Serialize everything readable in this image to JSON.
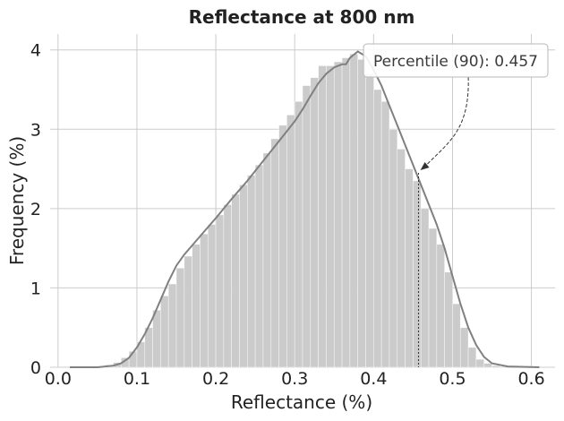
{
  "chart_data": {
    "type": "bar",
    "title": "Reflectance at 800 nm",
    "xlabel": "Reflectance (%)",
    "ylabel": "Frequency (%)",
    "xlim": [
      -0.01,
      0.63
    ],
    "ylim": [
      0,
      4.2
    ],
    "xticks": [
      0.0,
      0.1,
      0.2,
      0.3,
      0.4,
      0.5,
      0.6
    ],
    "xtick_labels": [
      "0.0",
      "0.1",
      "0.2",
      "0.3",
      "0.4",
      "0.5",
      "0.6"
    ],
    "yticks": [
      0,
      1,
      2,
      3,
      4
    ],
    "ytick_labels": [
      "0",
      "1",
      "2",
      "3",
      "4"
    ],
    "grid": true,
    "bins": {
      "start": 0.0,
      "width": 0.01,
      "values": [
        0.0,
        0.0,
        0.0,
        0.0,
        0.0,
        0.01,
        0.03,
        0.06,
        0.12,
        0.2,
        0.32,
        0.5,
        0.72,
        0.9,
        1.05,
        1.25,
        1.4,
        1.55,
        1.68,
        1.8,
        1.92,
        2.05,
        2.18,
        2.3,
        2.42,
        2.55,
        2.7,
        2.88,
        3.05,
        3.18,
        3.35,
        3.55,
        3.65,
        3.8,
        3.8,
        3.85,
        3.9,
        3.95,
        3.88,
        3.7,
        3.5,
        3.35,
        3.0,
        2.75,
        2.5,
        2.35,
        2.0,
        1.75,
        1.55,
        1.2,
        0.8,
        0.5,
        0.25,
        0.1,
        0.05,
        0.02,
        0.01,
        0.0,
        0.0,
        0.0,
        0.0
      ]
    },
    "kde": {
      "color": "#808080",
      "x": [
        0.015,
        0.03,
        0.05,
        0.07,
        0.08,
        0.09,
        0.1,
        0.11,
        0.12,
        0.13,
        0.14,
        0.15,
        0.16,
        0.18,
        0.2,
        0.22,
        0.24,
        0.26,
        0.28,
        0.3,
        0.31,
        0.32,
        0.33,
        0.34,
        0.35,
        0.36,
        0.365,
        0.37,
        0.38,
        0.39,
        0.4,
        0.41,
        0.42,
        0.43,
        0.44,
        0.45,
        0.46,
        0.47,
        0.48,
        0.49,
        0.5,
        0.51,
        0.52,
        0.53,
        0.54,
        0.55,
        0.57,
        0.61
      ],
      "y": [
        0.0,
        0.0,
        0.0,
        0.02,
        0.05,
        0.12,
        0.25,
        0.42,
        0.62,
        0.85,
        1.08,
        1.28,
        1.42,
        1.65,
        1.88,
        2.12,
        2.35,
        2.6,
        2.85,
        3.1,
        3.25,
        3.42,
        3.58,
        3.7,
        3.78,
        3.82,
        3.82,
        3.9,
        3.98,
        3.92,
        3.75,
        3.55,
        3.3,
        3.05,
        2.8,
        2.55,
        2.3,
        2.05,
        1.8,
        1.5,
        1.15,
        0.8,
        0.5,
        0.28,
        0.13,
        0.05,
        0.01,
        0.0
      ]
    },
    "marker": {
      "x": 0.457,
      "y": 2.45,
      "label": "Percentile (90): 0.457",
      "label_anchor_x": 0.52,
      "label_anchor_y": 3.88
    },
    "colors": {
      "bars": "#cbcbcb",
      "kde": "#808080",
      "grid": "#cccccc",
      "text": "#222222",
      "annotation": "#333333"
    }
  }
}
